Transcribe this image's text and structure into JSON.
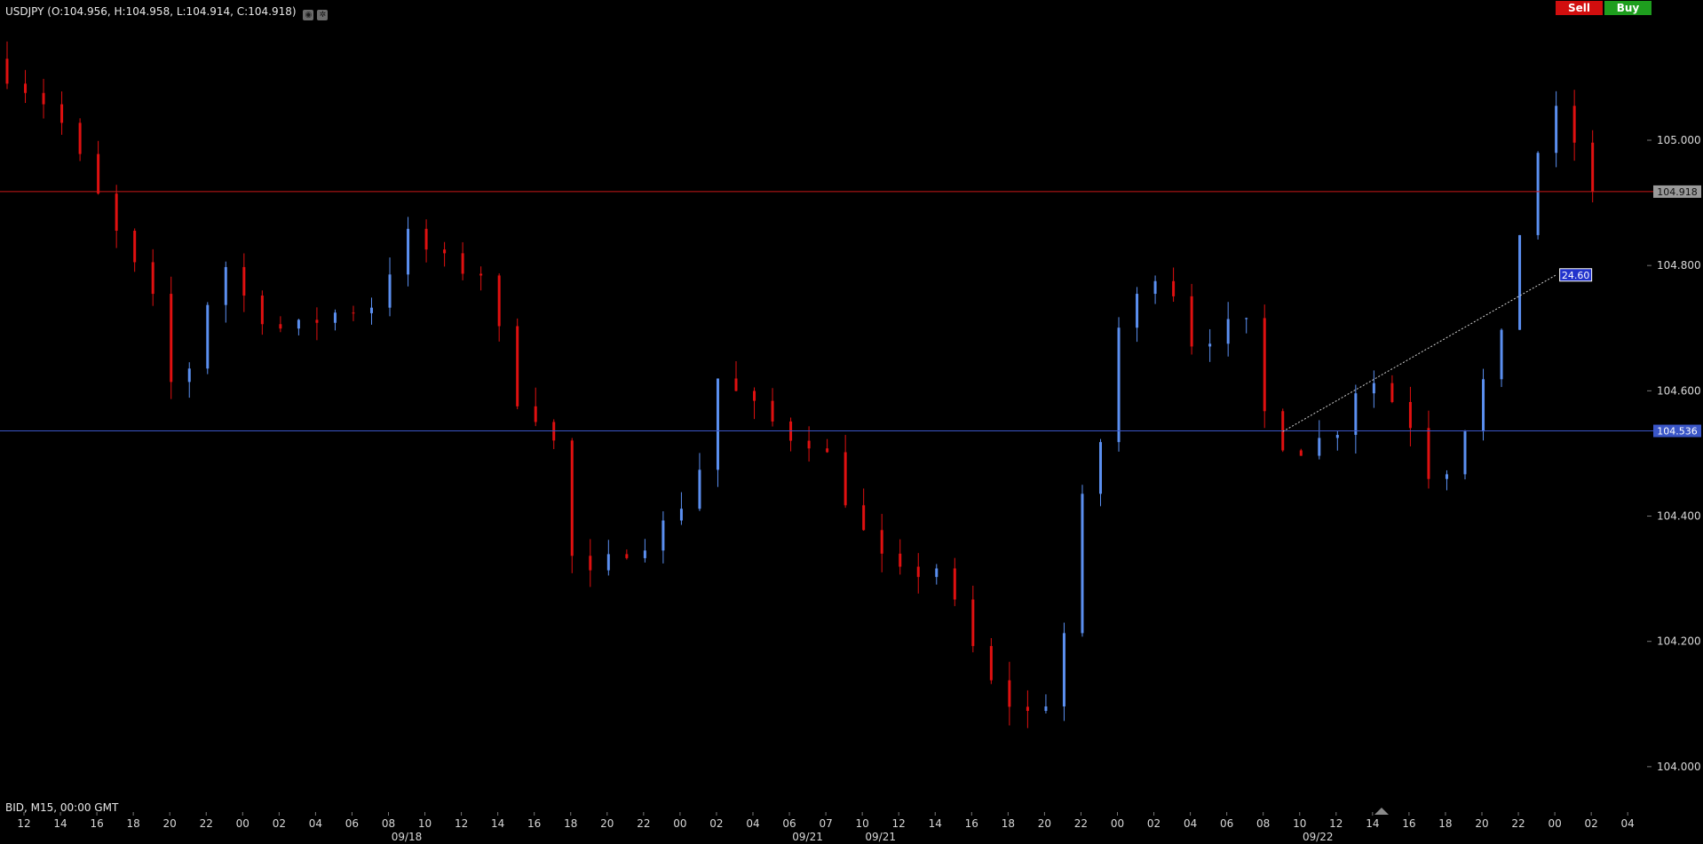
{
  "header": {
    "instrument_info": "USDJPY (O:104.956, H:104.958, L:104.914, C:104.918)",
    "icons": [
      "eye-icon",
      "settings-icon"
    ]
  },
  "trade_buttons": {
    "sell_label": "Sell",
    "buy_label": "Buy"
  },
  "footer": {
    "bid_info": "BID, M15, 00:00 GMT"
  },
  "colors": {
    "background": "#000000",
    "up_candle": "#5b8ff0",
    "down_candle": "#e01010",
    "current_price_line": "#c81818",
    "horizontal_line": "#3a56c8",
    "sell": "#d10e0e",
    "buy": "#1e9e1e"
  },
  "chart_data": {
    "type": "candlestick",
    "symbol": "USDJPY",
    "timeframe": "M15",
    "ylim": [
      103.98,
      105.17
    ],
    "y_ticks": [
      {
        "value": 105.0,
        "label": "105.000"
      },
      {
        "value": 104.8,
        "label": "104.800"
      },
      {
        "value": 104.6,
        "label": "104.600"
      },
      {
        "value": 104.4,
        "label": "104.400"
      },
      {
        "value": 104.2,
        "label": "104.200"
      },
      {
        "value": 104.0,
        "label": "104.000"
      }
    ],
    "x_ticks": [
      "12",
      "14",
      "16",
      "18",
      "20",
      "22",
      "00",
      "02",
      "04",
      "06",
      "08",
      "10",
      "12",
      "14",
      "16",
      "18",
      "20",
      "22",
      "00",
      "02",
      "04",
      "06",
      "07",
      "10",
      "12",
      "14",
      "16",
      "18",
      "20",
      "22",
      "00",
      "02",
      "04",
      "06",
      "08",
      "10",
      "12",
      "14",
      "16",
      "18",
      "20",
      "22",
      "00",
      "02",
      "04"
    ],
    "date_labels": [
      {
        "label": "09/18",
        "after_tick": 10
      },
      {
        "label": "09/21",
        "after_tick": 21
      },
      {
        "label": "09/21",
        "after_tick": 23
      },
      {
        "label": "09/22",
        "after_tick": 35
      }
    ],
    "current_price": {
      "value": 104.918,
      "label": "104.918"
    },
    "horizontal_line": {
      "value": 104.536,
      "label": "104.536"
    },
    "trend_line": {
      "start": {
        "tick": 35,
        "value": 104.535
      },
      "end": {
        "tick": 42.5,
        "value": 104.785
      },
      "label": "24.60"
    },
    "anchors": [
      {
        "t": 0,
        "p": 105.13
      },
      {
        "t": 1.8,
        "p": 105.05
      },
      {
        "t": 3.4,
        "p": 104.86
      },
      {
        "t": 4.5,
        "p": 104.74
      },
      {
        "t": 5.2,
        "p": 104.56
      },
      {
        "t": 5.8,
        "p": 104.72
      },
      {
        "t": 6.5,
        "p": 104.8
      },
      {
        "t": 7.1,
        "p": 104.74
      },
      {
        "t": 8.2,
        "p": 104.69
      },
      {
        "t": 9.2,
        "p": 104.72
      },
      {
        "t": 10.6,
        "p": 104.74
      },
      {
        "t": 11.4,
        "p": 104.85
      },
      {
        "t": 12.6,
        "p": 104.8
      },
      {
        "t": 13.5,
        "p": 104.79
      },
      {
        "t": 14.6,
        "p": 104.57
      },
      {
        "t": 15.4,
        "p": 104.56
      },
      {
        "t": 15.9,
        "p": 104.34
      },
      {
        "t": 16.5,
        "p": 104.3
      },
      {
        "t": 17.5,
        "p": 104.35
      },
      {
        "t": 18.3,
        "p": 104.37
      },
      {
        "t": 19.4,
        "p": 104.45
      },
      {
        "t": 20.0,
        "p": 104.62
      },
      {
        "t": 21.2,
        "p": 104.56
      },
      {
        "t": 22.0,
        "p": 104.53
      },
      {
        "t": 22.8,
        "p": 104.52
      },
      {
        "t": 23.9,
        "p": 104.38
      },
      {
        "t": 24.8,
        "p": 104.3
      },
      {
        "t": 26.0,
        "p": 104.32
      },
      {
        "t": 26.9,
        "p": 104.2
      },
      {
        "t": 27.5,
        "p": 104.13
      },
      {
        "t": 28.4,
        "p": 104.08
      },
      {
        "t": 29.3,
        "p": 104.12
      },
      {
        "t": 29.9,
        "p": 104.4
      },
      {
        "t": 30.5,
        "p": 104.52
      },
      {
        "t": 31.0,
        "p": 104.7
      },
      {
        "t": 32.2,
        "p": 104.81
      },
      {
        "t": 33.0,
        "p": 104.68
      },
      {
        "t": 34.0,
        "p": 104.7
      },
      {
        "t": 34.6,
        "p": 104.7
      },
      {
        "t": 35.1,
        "p": 104.53
      },
      {
        "t": 36.0,
        "p": 104.51
      },
      {
        "t": 36.9,
        "p": 104.53
      },
      {
        "t": 37.7,
        "p": 104.63
      },
      {
        "t": 38.3,
        "p": 104.6
      },
      {
        "t": 39.0,
        "p": 104.55
      },
      {
        "t": 39.7,
        "p": 104.44
      },
      {
        "t": 40.6,
        "p": 104.56
      },
      {
        "t": 41.5,
        "p": 104.68
      },
      {
        "t": 42.3,
        "p": 104.96
      },
      {
        "t": 43.0,
        "p": 105.04
      },
      {
        "t": 43.6,
        "p": 104.99
      },
      {
        "t": 43.95,
        "p": 104.918
      }
    ]
  }
}
